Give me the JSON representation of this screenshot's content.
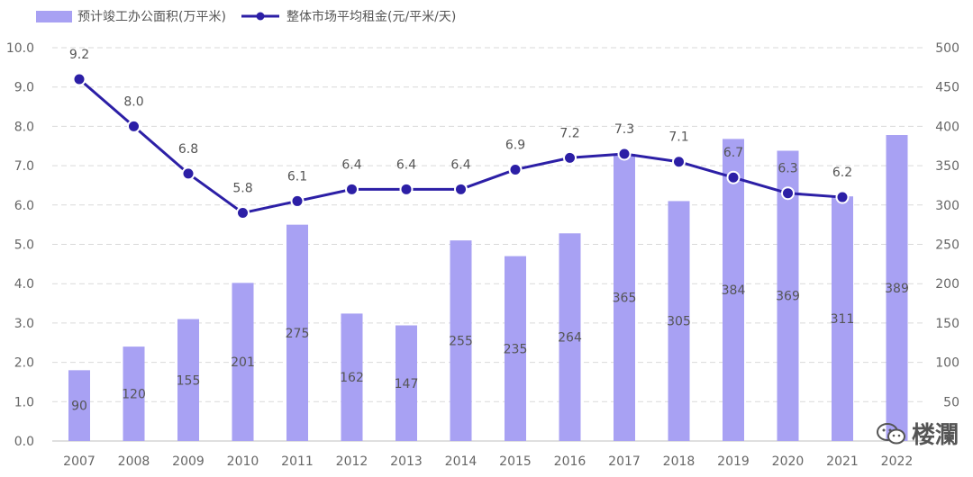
{
  "legend": {
    "bar_label": "预计竣工办公面积(万平米)",
    "line_label": "整体市场平均租金(元/平米/天)"
  },
  "watermark": {
    "text": "楼瀾"
  },
  "colors": {
    "bar": "#a8a1f3",
    "line": "#2c1fa6",
    "grid": "#d9d9d9"
  },
  "chart_data": {
    "type": "bar+line",
    "categories": [
      "2007",
      "2008",
      "2009",
      "2010",
      "2011",
      "2012",
      "2013",
      "2014",
      "2015",
      "2016",
      "2017",
      "2018",
      "2019",
      "2020",
      "2021",
      "2022"
    ],
    "series": [
      {
        "name": "预计竣工办公面积(万平米)",
        "type": "bar",
        "axis": "right",
        "values": [
          90,
          120,
          155,
          201,
          275,
          162,
          147,
          255,
          235,
          264,
          365,
          305,
          384,
          369,
          311,
          389
        ],
        "labels": [
          "90",
          "120",
          "155",
          "201",
          "275",
          "162",
          "147",
          "255",
          "235",
          "264",
          "365",
          "305",
          "384",
          "369",
          "311",
          "389"
        ]
      },
      {
        "name": "整体市场平均租金(元/平米/天)",
        "type": "line",
        "axis": "left",
        "values": [
          9.2,
          8.0,
          6.8,
          5.8,
          6.1,
          6.4,
          6.4,
          6.4,
          6.9,
          7.2,
          7.3,
          7.1,
          6.7,
          6.3,
          6.2,
          null
        ],
        "labels": [
          "9.2",
          "8.0",
          "6.8",
          "5.8",
          "6.1",
          "6.4",
          "6.4",
          "6.4",
          "6.9",
          "7.2",
          "7.3",
          "7.1",
          "6.7",
          "6.3",
          "6.2",
          ""
        ]
      }
    ],
    "y_left": {
      "min": 0,
      "max": 10,
      "ticks": [
        "0.0",
        "1.0",
        "2.0",
        "3.0",
        "4.0",
        "5.0",
        "6.0",
        "7.0",
        "8.0",
        "9.0",
        "10.0"
      ]
    },
    "y_right": {
      "min": 0,
      "max": 500,
      "ticks": [
        "",
        "50",
        "100",
        "150",
        "200",
        "250",
        "300",
        "350",
        "400",
        "450",
        "500"
      ]
    },
    "grid": true,
    "legend_position": "top-left"
  }
}
